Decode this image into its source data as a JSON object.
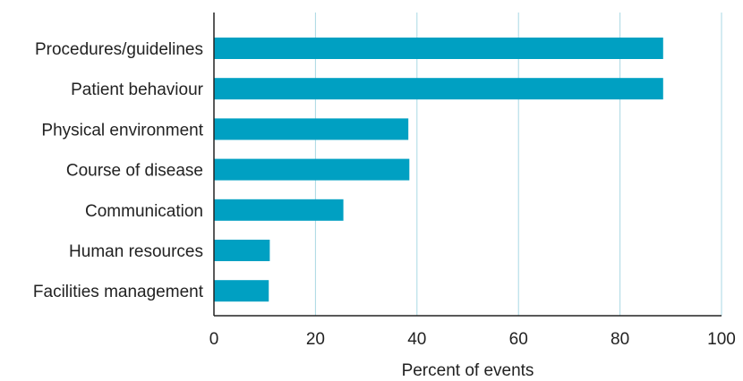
{
  "chart_data": {
    "type": "bar",
    "orientation": "horizontal",
    "categories": [
      "Procedures/guidelines",
      "Patient behaviour",
      "Physical environment",
      "Course of disease",
      "Communication",
      "Human resources",
      "Facilities management"
    ],
    "values": [
      88.5,
      88.5,
      38.3,
      38.5,
      25.5,
      11,
      10.8
    ],
    "xlabel": "Percent of events",
    "ylabel": "",
    "xlim": [
      0,
      100
    ],
    "xticks": [
      "0",
      "20",
      "40",
      "60",
      "80",
      "100"
    ],
    "grid": "vertical",
    "colors": {
      "bar": "#00a0c2",
      "grid": "#a9d8e4",
      "axis": "#222222"
    }
  }
}
